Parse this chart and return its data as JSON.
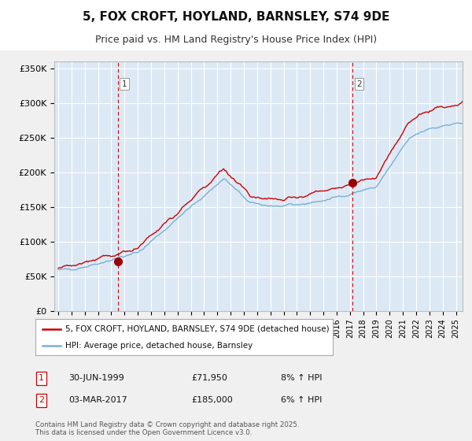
{
  "title": "5, FOX CROFT, HOYLAND, BARNSLEY, S74 9DE",
  "subtitle": "Price paid vs. HM Land Registry's House Price Index (HPI)",
  "hpi_label": "HPI: Average price, detached house, Barnsley",
  "property_label": "5, FOX CROFT, HOYLAND, BARNSLEY, S74 9DE (detached house)",
  "transaction1_date": "30-JUN-1999",
  "transaction1_price": 71950,
  "transaction1_hpi": "8% ↑ HPI",
  "transaction2_date": "03-MAR-2017",
  "transaction2_price": 185000,
  "transaction2_hpi": "6% ↑ HPI",
  "vline1_x": 1999.5,
  "vline2_x": 2017.2,
  "marker1_x": 1999.5,
  "marker1_y": 71950,
  "marker2_x": 2017.2,
  "marker2_y": 185000,
  "ylim": [
    0,
    360000
  ],
  "xlim": [
    1994.7,
    2025.5
  ],
  "yticks": [
    0,
    50000,
    100000,
    150000,
    200000,
    250000,
    300000,
    350000
  ],
  "ytick_labels": [
    "£0",
    "£50K",
    "£100K",
    "£150K",
    "£200K",
    "£250K",
    "£300K",
    "£350K"
  ],
  "xticks": [
    1995,
    1996,
    1997,
    1998,
    1999,
    2000,
    2001,
    2002,
    2003,
    2004,
    2005,
    2006,
    2007,
    2008,
    2009,
    2010,
    2011,
    2012,
    2013,
    2014,
    2015,
    2016,
    2017,
    2018,
    2019,
    2020,
    2021,
    2022,
    2023,
    2024,
    2025
  ],
  "line_color_property": "#cc0000",
  "line_color_hpi": "#7bafd4",
  "vline_color": "#cc0000",
  "marker_color": "#990000",
  "grid_color": "#cccccc",
  "plot_bg_color": "#dce9f5",
  "fig_bg_color": "#f0f0f0",
  "footer_text": "Contains HM Land Registry data © Crown copyright and database right 2025.\nThis data is licensed under the Open Government Licence v3.0.",
  "title_fontsize": 11,
  "subtitle_fontsize": 9,
  "tick_fontsize": 8,
  "legend_fontsize": 8
}
